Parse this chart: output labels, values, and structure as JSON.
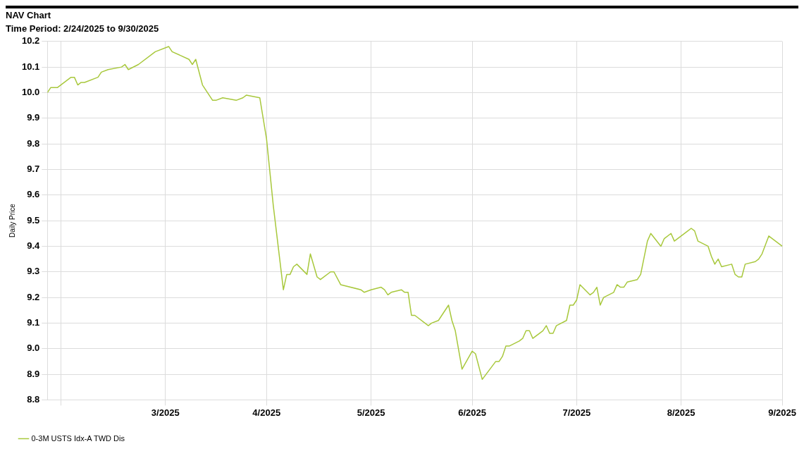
{
  "chart_data": {
    "type": "line",
    "title": "NAV Chart",
    "subtitle": "Time Period: 2/24/2025 to 9/30/2025",
    "ylabel": "Daily Price",
    "series": [
      {
        "name": "0-3M USTS Idx-A TWD Dis",
        "color": "#a8c83c",
        "x": [
          "2025-02-24",
          "2025-02-25",
          "2025-02-26",
          "2025-02-27",
          "2025-03-03",
          "2025-03-04",
          "2025-03-05",
          "2025-03-06",
          "2025-03-07",
          "2025-03-11",
          "2025-03-12",
          "2025-03-14",
          "2025-03-18",
          "2025-03-19",
          "2025-03-20",
          "2025-03-23",
          "2025-03-28",
          "2025-04-01",
          "2025-04-02",
          "2025-04-07",
          "2025-04-08",
          "2025-04-09",
          "2025-04-11",
          "2025-04-14",
          "2025-04-15",
          "2025-04-17",
          "2025-04-21",
          "2025-04-23",
          "2025-04-24",
          "2025-04-28",
          "2025-04-30",
          "2025-05-02",
          "2025-05-05",
          "2025-05-06",
          "2025-05-07",
          "2025-05-08",
          "2025-05-09",
          "2025-05-12",
          "2025-05-13",
          "2025-05-15",
          "2025-05-16",
          "2025-05-19",
          "2025-05-20",
          "2025-05-22",
          "2025-05-28",
          "2025-05-29",
          "2025-05-31",
          "2025-06-03",
          "2025-06-04",
          "2025-06-05",
          "2025-06-06",
          "2025-06-09",
          "2025-06-10",
          "2025-06-11",
          "2025-06-12",
          "2025-06-13",
          "2025-06-17",
          "2025-06-18",
          "2025-06-20",
          "2025-06-23",
          "2025-06-24",
          "2025-06-25",
          "2025-06-27",
          "2025-06-30",
          "2025-07-01",
          "2025-07-03",
          "2025-07-07",
          "2025-07-08",
          "2025-07-09",
          "2025-07-10",
          "2025-07-11",
          "2025-07-14",
          "2025-07-15",
          "2025-07-16",
          "2025-07-17",
          "2025-07-18",
          "2025-07-21",
          "2025-07-22",
          "2025-07-23",
          "2025-07-24",
          "2025-07-25",
          "2025-07-28",
          "2025-07-29",
          "2025-07-30",
          "2025-07-31",
          "2025-08-01",
          "2025-08-04",
          "2025-08-05",
          "2025-08-06",
          "2025-08-07",
          "2025-08-08",
          "2025-08-11",
          "2025-08-12",
          "2025-08-13",
          "2025-08-14",
          "2025-08-15",
          "2025-08-18",
          "2025-08-19",
          "2025-08-21",
          "2025-08-22",
          "2025-08-25",
          "2025-08-26",
          "2025-08-28",
          "2025-08-29",
          "2025-09-02",
          "2025-09-03",
          "2025-09-04",
          "2025-09-05",
          "2025-09-08",
          "2025-09-09",
          "2025-09-10",
          "2025-09-11",
          "2025-09-12",
          "2025-09-15",
          "2025-09-16",
          "2025-09-17",
          "2025-09-18",
          "2025-09-19",
          "2025-09-22",
          "2025-09-23",
          "2025-09-24",
          "2025-09-26",
          "2025-09-30"
        ],
        "values": [
          10.0,
          10.02,
          10.02,
          10.02,
          10.06,
          10.06,
          10.03,
          10.04,
          10.04,
          10.06,
          10.08,
          10.09,
          10.1,
          10.11,
          10.09,
          10.11,
          10.16,
          10.18,
          10.16,
          10.13,
          10.11,
          10.13,
          10.03,
          9.97,
          9.97,
          9.98,
          9.97,
          9.98,
          9.99,
          9.98,
          9.82,
          9.56,
          9.23,
          9.29,
          9.29,
          9.32,
          9.33,
          9.29,
          9.37,
          9.28,
          9.27,
          9.3,
          9.3,
          9.25,
          9.23,
          9.22,
          9.23,
          9.24,
          9.23,
          9.21,
          9.22,
          9.23,
          9.22,
          9.22,
          9.13,
          9.13,
          9.09,
          9.1,
          9.11,
          9.17,
          9.11,
          9.07,
          8.92,
          8.99,
          8.98,
          8.88,
          8.95,
          8.95,
          8.97,
          9.01,
          9.01,
          9.03,
          9.04,
          9.07,
          9.07,
          9.04,
          9.07,
          9.09,
          9.06,
          9.06,
          9.09,
          9.11,
          9.17,
          9.17,
          9.19,
          9.25,
          9.21,
          9.22,
          9.24,
          9.17,
          9.2,
          9.22,
          9.25,
          9.24,
          9.24,
          9.26,
          9.27,
          9.29,
          9.42,
          9.45,
          9.4,
          9.43,
          9.45,
          9.42,
          9.46,
          9.47,
          9.46,
          9.42,
          9.4,
          9.36,
          9.33,
          9.35,
          9.32,
          9.33,
          9.29,
          9.28,
          9.28,
          9.33,
          9.34,
          9.35,
          9.37,
          9.44,
          9.4
        ]
      }
    ],
    "xlim": [
      "2025-02-24",
      "2025-09-30"
    ],
    "xticks": [
      {
        "value": "2025-02-28",
        "label": null
      },
      {
        "value": "2025-03-31",
        "label": "3/2025"
      },
      {
        "value": "2025-04-30",
        "label": "4/2025"
      },
      {
        "value": "2025-05-31",
        "label": "5/2025"
      },
      {
        "value": "2025-06-30",
        "label": "6/2025"
      },
      {
        "value": "2025-07-31",
        "label": "7/2025"
      },
      {
        "value": "2025-08-31",
        "label": "8/2025"
      },
      {
        "value": "2025-09-30",
        "label": "9/2025"
      }
    ],
    "ylim": [
      8.8,
      10.2
    ],
    "yticks": [
      8.8,
      8.9,
      {
        "value": 9,
        "label": "9.0"
      },
      9.1,
      9.2,
      9.3,
      9.4,
      9.5,
      9.6,
      9.7,
      9.8,
      9.9,
      {
        "value": 10,
        "label": "10.0"
      },
      10.1,
      10.2
    ],
    "grid": true,
    "legend": "bottom left",
    "marker": "none",
    "line_style": "solid"
  }
}
